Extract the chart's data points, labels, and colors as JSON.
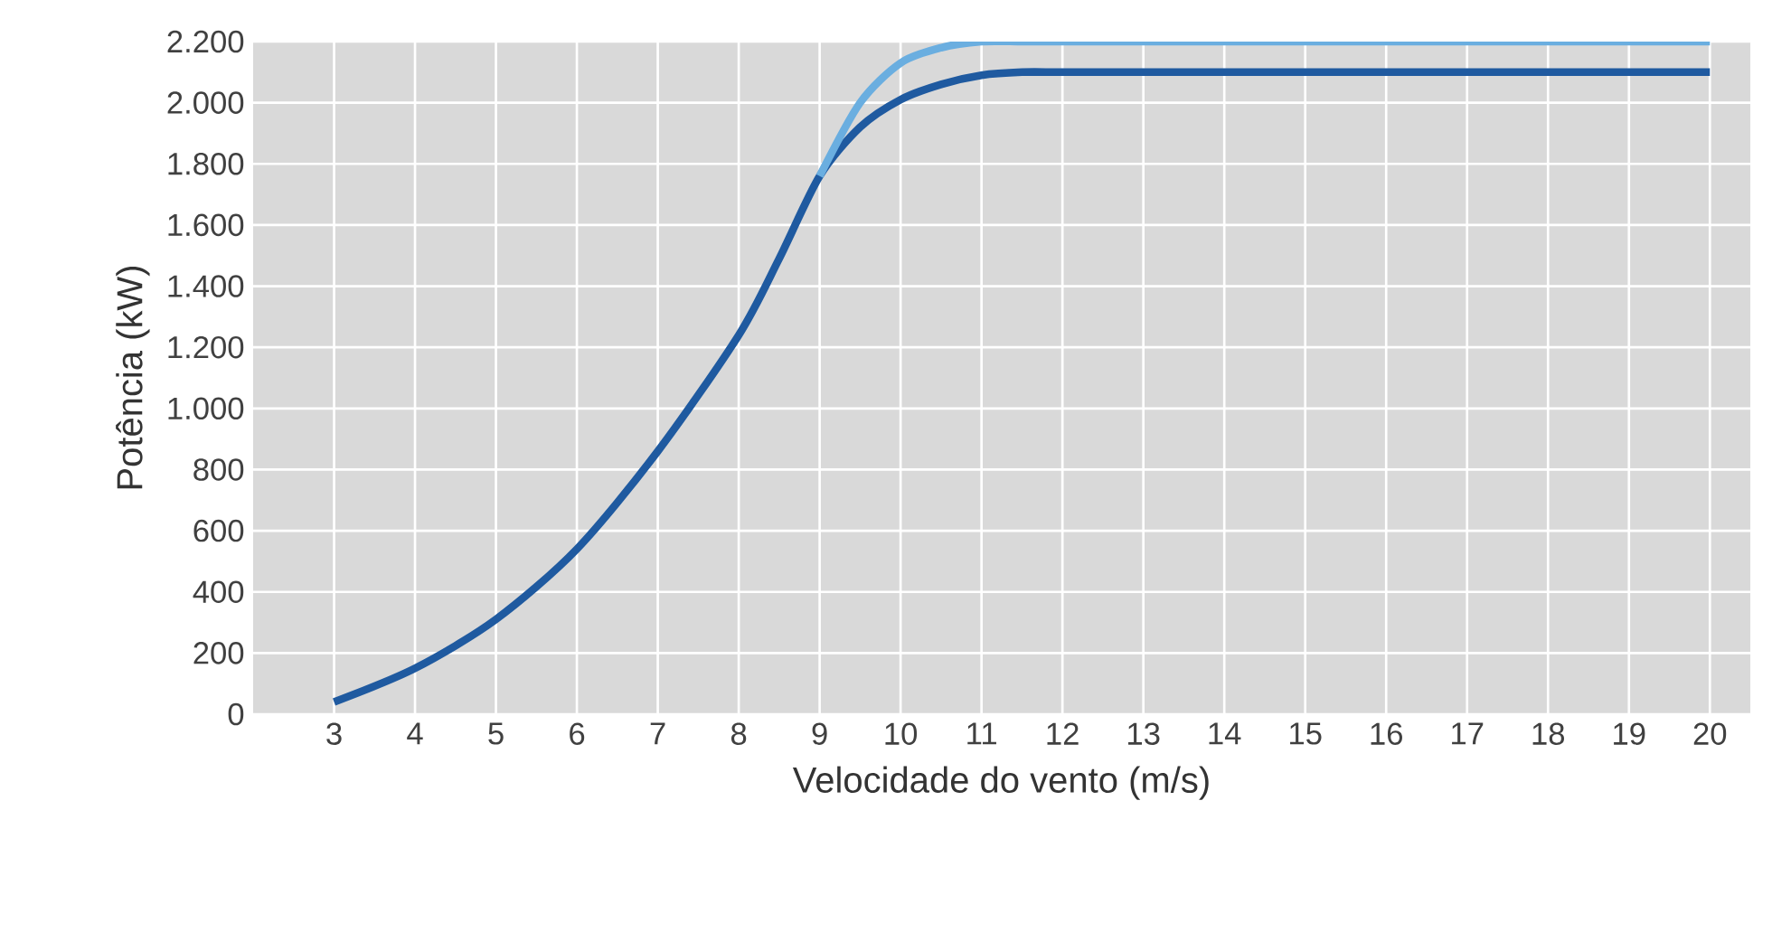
{
  "chart_data": {
    "type": "line",
    "xlabel": "Velocidade do vento (m/s)",
    "ylabel": "Potência (kW)",
    "x": [
      3,
      4,
      5,
      6,
      7,
      8,
      8.5,
      9,
      9.5,
      10,
      10.5,
      11,
      11.5,
      12,
      13,
      14,
      15,
      16,
      17,
      18,
      19,
      20
    ],
    "series": [
      {
        "color": "#1f5aa0",
        "values": [
          40,
          150,
          310,
          540,
          860,
          1240,
          1490,
          1760,
          1920,
          2010,
          2060,
          2090,
          2100,
          2100,
          2100,
          2100,
          2100,
          2100,
          2100,
          2100,
          2100,
          2100
        ]
      },
      {
        "color": "#6aaee0",
        "values": [
          null,
          null,
          null,
          null,
          null,
          null,
          null,
          1760,
          2000,
          2130,
          2180,
          2200,
          2200,
          2200,
          2200,
          2200,
          2200,
          2200,
          2200,
          2200,
          2200,
          2200
        ]
      }
    ],
    "xlim": [
      2,
      20.5
    ],
    "ylim": [
      0,
      2200
    ],
    "xticks": [
      3,
      4,
      5,
      6,
      7,
      8,
      9,
      10,
      11,
      12,
      13,
      14,
      15,
      16,
      17,
      18,
      19,
      20
    ],
    "yticks": [
      {
        "value": 0,
        "label": "0"
      },
      {
        "value": 200,
        "label": "200"
      },
      {
        "value": 400,
        "label": "400"
      },
      {
        "value": 600,
        "label": "600"
      },
      {
        "value": 800,
        "label": "800"
      },
      {
        "value": 1000,
        "label": "1.000"
      },
      {
        "value": 1200,
        "label": "1.200"
      },
      {
        "value": 1400,
        "label": "1.400"
      },
      {
        "value": 1600,
        "label": "1.600"
      },
      {
        "value": 1800,
        "label": "1.800"
      },
      {
        "value": 2000,
        "label": "2.000"
      },
      {
        "value": 2200,
        "label": "2.200"
      }
    ],
    "grid": true,
    "legend": false,
    "marker": "none",
    "line_style": "solid"
  }
}
